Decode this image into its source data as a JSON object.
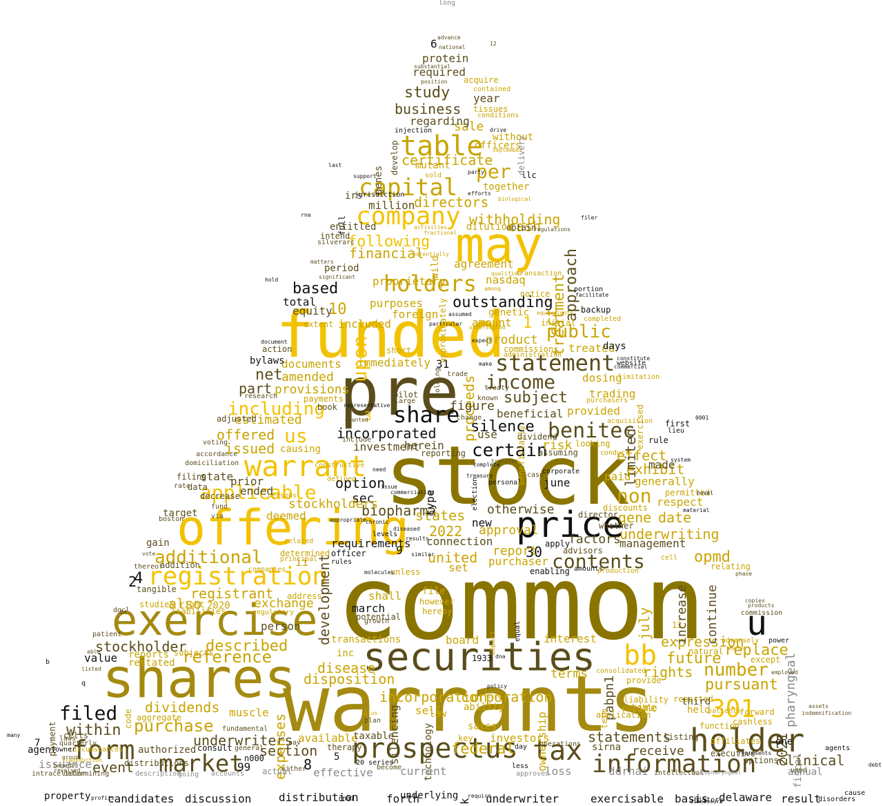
{
  "colors": {
    "background": "#ffffff",
    "olive_dark": "#8a7400",
    "olive": "#a48a10",
    "dark_olive": "#5a4d1c",
    "gold": "#f2c200",
    "mustard": "#c9a400",
    "gray": "#8a8a8a",
    "black": "#111111"
  },
  "words": {
    "common": "common",
    "warrants": "warrants",
    "stock": "stock",
    "funded": "funded",
    "pre": "pre",
    "may": "may",
    "offering": "offering",
    "shares": "shares",
    "exercise": "exercise",
    "price": "price",
    "securities": "securities",
    "registration": "registration",
    "warrant": "warrant",
    "holder": "holder",
    "prospectus": "prospectus",
    "tax": "tax",
    "information": "information",
    "form": "form",
    "market": "market",
    "share": "share",
    "company": "company",
    "capital": "capital",
    "table": "table",
    "holders": "holders",
    "statement": "statement",
    "benitec": "benitec",
    "bb": "bb",
    "u": "u",
    "n301": "301",
    "upon": "upon",
    "income": "income",
    "contents": "contents",
    "certain": "certain",
    "us": "us",
    "applicable": "applicable",
    "additional": "additional",
    "reference": "reference",
    "purchase": "purchase",
    "number": "number",
    "non": "non",
    "study": "study",
    "business": "business",
    "certificate": "certificate",
    "per": "per",
    "withholding": "withholding",
    "directors": "directors",
    "cash": "cash",
    "following": "following",
    "financial": "financial",
    "outstanding": "outstanding",
    "public": "public",
    "subject": "subject",
    "including": "including",
    "offered": "offered",
    "issued": "issued",
    "filed": "filed",
    "within": "within",
    "dividends": "dividends",
    "stockholder": "stockholder",
    "described": "described",
    "registrant": "registrant",
    "underwriters": "underwriters",
    "statements": "statements",
    "receive": "receive",
    "clinical": "clinical",
    "federal": "federal",
    "incorporation": "incorporation",
    "corporation": "corporation",
    "disposition": "disposition",
    "disease": "disease",
    "development": "development",
    "section": "section",
    "event": "event",
    "exhibit": "exhibit",
    "effect": "effect",
    "gene": "gene",
    "underwriting": "underwriting",
    "date": "date",
    "opmd": "opmd",
    "future": "future",
    "rights": "rights",
    "replace": "replace",
    "pursuant": "pursuant",
    "expression": "expression",
    "silence": "silence",
    "incorporated": "incorporated",
    "option": "option",
    "biopharma": "biopharma",
    "states": "states",
    "united": "united",
    "protein": "protein",
    "required": "required",
    "sale": "sale",
    "year": "year",
    "regarding": "regarding",
    "million": "million",
    "based": "based",
    "act": "act",
    "treatment": "treatment",
    "approach": "approach",
    "limited": "limited",
    "estimated": "estimated",
    "provisions": "provisions",
    "amended": "amended",
    "documents": "documents",
    "net": "net",
    "part": "part",
    "also": "also",
    "exchange": "exchange",
    "equity": "equity",
    "total": "total",
    "delaware": "delaware",
    "result": "result",
    "basis": "basis",
    "exercisable": "exercisable",
    "underwriter": "underwriter",
    "forth": "forth",
    "underlying": "underlying",
    "distribution": "distribution",
    "discussion": "discussion",
    "candidates": "candidates",
    "property": "property",
    "long": "long",
    "n2022": "2022",
    "n2021": "2021",
    "n10": "10",
    "n1": "1",
    "n30": "30",
    "n31": "31",
    "n3": "3",
    "n9": "9",
    "n8": "8",
    "n4": "4",
    "n2": "2",
    "n6": "6",
    "n7": "7",
    "n99": "99",
    "n5": "5",
    "n13": "13",
    "n1933": "1933",
    "n2020": "2020",
    "pabpn1": "pabpn1",
    "pharyngeal": "pharyngeal",
    "continue": "continue",
    "increase": "increase",
    "july": "july",
    "fiscal": "fiscal",
    "ownership": "ownership",
    "terms": "terms",
    "interest": "interest",
    "proceeds": "proceeds",
    "expenses": "expenses",
    "silencing": "silencing",
    "technology": "technology",
    "genes": "genes",
    "nasdaq": "nasdaq",
    "amount": "amount",
    "product": "product",
    "agreement": "agreement",
    "proprietary": "proprietary",
    "purposes": "purposes",
    "foreign": "foreign",
    "connection": "connection",
    "approval": "approval",
    "report": "report",
    "purchaser": "purchaser",
    "factors": "factors",
    "management": "management",
    "otherwise": "otherwise",
    "respect": "respect",
    "generally": "generally",
    "paid": "paid",
    "made": "made",
    "risk": "risk",
    "beneficial": "beneficial",
    "use": "use",
    "herein": "herein",
    "investment": "investment",
    "sec": "sec",
    "type": "type",
    "stockholders": "stockholders",
    "deemed": "deemed",
    "prior": "prior",
    "ended": "ended",
    "person": "person",
    "requirements": "requirements",
    "march": "march",
    "shall": "shall",
    "set": "set",
    "ii": "ii",
    "transactions": "transactions",
    "board": "board",
    "available": "available",
    "time": "time",
    "sales": "sales",
    "investors": "investors",
    "ddrnai": "ddrnai",
    "annual": "annual",
    "one": "one",
    "held": "held",
    "loss": "loss",
    "current": "current",
    "effective": "effective",
    "issuance": "issuance",
    "agent": "agent",
    "authorized": "authorized",
    "muscle": "muscle",
    "sell": "sell",
    "law": "law",
    "ability": "ability",
    "taxable": "taxable",
    "inc": "inc",
    "value": "value",
    "state": "state",
    "immediately": "immediately",
    "included": "included",
    "dilution": "dilution",
    "together": "together",
    "mutant": "mutant",
    "officers": "officers",
    "without": "without",
    "tissues": "tissues",
    "acquire": "acquire",
    "treated": "treated",
    "dosing": "dosing",
    "trading": "trading",
    "provided": "provided",
    "days": "days",
    "june": "june",
    "director": "director",
    "whether": "whether",
    "advisors": "advisors",
    "figure": "figure",
    "genetic": "genetic",
    "notice": "notice",
    "applicable_small": "applicable",
    "sirna": "sirna",
    "executive": "executive",
    "options": "options",
    "listing": "listing",
    "reported": "reported",
    "function": "function",
    "page": "page",
    "target": "target",
    "gain": "gain",
    "code": "code",
    "payment": "payment",
    "addition": "addition",
    "distributions": "distributions",
    "tangible": "tangible",
    "laws": "laws",
    "quarterly": "quarterly",
    "cells": "cells",
    "circumstances": "circumstances",
    "reports": "reports",
    "restated": "restated",
    "subjects": "subjects",
    "studies": "studies",
    "liabilities": "liabilities",
    "address": "address",
    "right": "right",
    "file": "file",
    "however": "however",
    "hereby": "hereby",
    "potential": "potential",
    "growth": "growth",
    "unless": "unless",
    "officer": "officer",
    "rules": "rules",
    "payments": "payments",
    "extent": "extent",
    "book": "book",
    "adjusted": "adjusted",
    "voting": "voting",
    "accordance": "accordance",
    "domiciliation": "domiciliation",
    "filing": "filing",
    "rate": "rate",
    "data": "data",
    "decrease": "decrease",
    "boston": "boston",
    "bylaws": "bylaws",
    "action": "action",
    "research": "research",
    "fund": "fund",
    "via": "via",
    "consult": "consult",
    "owner": "owner",
    "mainland": "n000",
    "series": "20 series",
    "become": "become",
    "actual": "actual",
    "less": "less",
    "day": "day",
    "operations": "operations",
    "key": "key",
    "therapy": "therapy",
    "general": "general",
    "either": "either",
    "intracellular": "intracellular",
    "description": "description",
    "determining": "determining",
    "going": "going",
    "accounts": "accounts",
    "approved": "approved",
    "intellectual": "intellectual",
    "oculopharyngeal": "oculopharyngeal",
    "used": "used",
    "agents": "agents",
    "debt": "debt",
    "cause": "cause",
    "disorders": "disorders",
    "history": "history",
    "disclosure": "disclosure",
    "require": "require",
    "rnai": "rnai",
    "k": "k",
    "profits": "profits",
    "many": "many",
    "b": "b",
    "q": "q",
    "able": "able",
    "patient": "patient",
    "dgcl": "dgcl",
    "n14": "14",
    "power": "power",
    "commission": "commission",
    "copies": "copies",
    "products": "products",
    "phase": "phase",
    "assets": "assets",
    "indemnification": "indemnification",
    "employed": "employed",
    "n0001": "0001",
    "first": "first",
    "lieu": "lieu",
    "filer": "filer",
    "rna": "rna",
    "hold": "hold",
    "last": "last",
    "support": "support",
    "ilc": "llc",
    "delivery": "delivery",
    "n12": "12",
    "national": "national",
    "advance": "advance",
    "substantial": "substantial",
    "position": "position",
    "contained": "contained",
    "conditions": "conditions",
    "injection": "injection",
    "develop": "develop",
    "drive": "drive",
    "irs": "irs",
    "jurisdiction": "jurisdiction",
    "full": "full",
    "entitled": "entitled",
    "intend": "intend",
    "silverarc": "silverarc",
    "period": "period",
    "matters": "matters",
    "significant": "significant",
    "wild": "wild",
    "obtain": "obtain",
    "regulations": "regulations",
    "portion": "portion",
    "facilitate": "facilitate",
    "backup": "backup",
    "initial": "initial",
    "completed": "completed",
    "administration": "administration",
    "commissions": "commissions",
    "website": "website",
    "commercial": "commercial",
    "limitation": "limitation",
    "constitute": "constitute",
    "purchasers": "purchasers",
    "acquisition": "acquisition",
    "rule": "rule",
    "exercised": "exercised",
    "permitted": "permitted",
    "conduct": "conduct",
    "discounts": "discounts",
    "looking": "looking",
    "assuming": "assuming",
    "dividend": "dividend",
    "reporting": "reporting",
    "causing": "causing",
    "persons": "persons",
    "include": "include",
    "granted": "granted",
    "pilot": "pilot",
    "large": "large",
    "trade": "trade",
    "treaty": "treaty",
    "change": "change",
    "known": "known",
    "holding": "holding",
    "transfer": "transfer",
    "case": "case",
    "corporate": "corporate",
    "personal": "personal",
    "election": "election",
    "system": "system",
    "novel": "novel",
    "material": "material",
    "relating": "relating",
    "cell": "cell",
    "enabling": "enabling",
    "amounts": "amounts",
    "production": "production",
    "liability": "liability",
    "payable": "payable",
    "third": "third",
    "except": "except",
    "natural": "natural",
    "provide": "provide",
    "consolidated": "consolidated",
    "application": "application",
    "term": "term",
    "cashless": "cashless",
    "patients": "patients",
    "forward": "forward",
    "affiliates": "affiliates",
    "adversely": "adversely",
    "whole": "whole",
    "represents": "represents",
    "equal": "equal",
    "impact": "impact",
    "new": "new",
    "apply": "apply",
    "similar": "similar",
    "results": "results",
    "levels": "levels",
    "chronic": "chronic",
    "diseased": "diseased",
    "appropriate": "appropriate",
    "molecules": "molecules",
    "constructive": "constructive",
    "defined": "defined",
    "related": "related",
    "determined": "determined",
    "principal": "principal",
    "companies": "companies",
    "vote": "vote",
    "thereof": "thereof",
    "listed": "listed",
    "group": "group",
    "transduction": "transduction",
    "benefit": "benefit",
    "received": "received",
    "aav": "aav",
    "plan": "plan",
    "mutants": "aggregate",
    "fundamental": "fundamental",
    "regulatory": "regulatory",
    "document": "document",
    "undersigned": "undersigned",
    "particular": "particular",
    "assumed": "assumed",
    "representative": "representative",
    "ability2": "short",
    "sold": "sold",
    "party": "party",
    "efforts": "efforts",
    "biological": "biological",
    "september": "september",
    "transaction": "transaction",
    "qualified": "qualified",
    "among": "among",
    "equivalents": "equivalents",
    "expect": "expect",
    "make": "make",
    "approximately": "approximately",
    "potentially": "potentially",
    "activities": "activities",
    "fractional": "fractional",
    "need": "need",
    "issue": "issue",
    "commercialize": "commercialize",
    "beneficially": "beneficially",
    "treasury": "treasury",
    "policy": "policy",
    "risks": "risks",
    "nrep": "dna",
    "plus": "plus",
    "complete": "complete"
  }
}
